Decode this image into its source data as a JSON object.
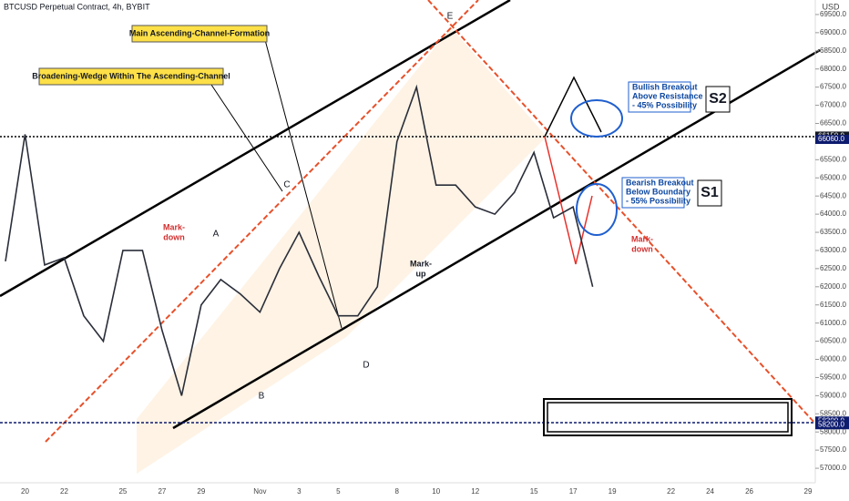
{
  "header": "BTCUSD Perpetual Contract, 4h, BYBIT",
  "currency": "USD",
  "chart_data": {
    "type": "line",
    "categories": [
      null,
      "20",
      null,
      "22",
      null,
      null,
      "25",
      null,
      "27",
      null,
      "29",
      null,
      null,
      "Nov",
      null,
      "3",
      null,
      "5",
      null,
      null,
      "8",
      null,
      "10",
      null,
      "12",
      null,
      null,
      "15",
      null,
      "17",
      null,
      "19",
      null,
      null,
      "22",
      null,
      "24",
      null,
      "26",
      null,
      null,
      "29"
    ],
    "series": [
      {
        "color": "#2a2e39",
        "values": [
          62700,
          66200,
          62600,
          62800,
          61200,
          60500,
          63000,
          63000,
          60800,
          59000,
          61500,
          62200,
          61800,
          61300,
          62500,
          63500,
          62300,
          61200,
          61200,
          62000,
          66000,
          67500,
          64800,
          64800,
          64200,
          64000,
          64600,
          65700,
          63900,
          64200,
          62000,
          null,
          null,
          null,
          null,
          null,
          null,
          null,
          null,
          null,
          null,
          null
        ]
      }
    ],
    "ylim": [
      56600,
      69900
    ],
    "yticks": [
      {
        "value": 57000,
        "label": "57000.0"
      },
      {
        "value": 57500,
        "label": "57500.0"
      },
      {
        "value": 58000,
        "label": "58000.0"
      },
      {
        "value": 58500,
        "label": "58500.0"
      },
      {
        "value": 59000,
        "label": "59000.0"
      },
      {
        "value": 59500,
        "label": "59500.0"
      },
      {
        "value": 60000,
        "label": "60000.0"
      },
      {
        "value": 60500,
        "label": "60500.0"
      },
      {
        "value": 61000,
        "label": "61000.0"
      },
      {
        "value": 61500,
        "label": "61500.0"
      },
      {
        "value": 62000,
        "label": "62000.0"
      },
      {
        "value": 62500,
        "label": "62500.0"
      },
      {
        "value": 63000,
        "label": "63000.0"
      },
      {
        "value": 63500,
        "label": "63500.0"
      },
      {
        "value": 64000,
        "label": "64000.0"
      },
      {
        "value": 64500,
        "label": "64500.0"
      },
      {
        "value": 65000,
        "label": "65000.0"
      },
      {
        "value": 65500,
        "label": "65500.0"
      },
      {
        "value": 66500,
        "label": "66500.0"
      },
      {
        "value": 67000,
        "label": "67000.0"
      },
      {
        "value": 67500,
        "label": "67500.0"
      },
      {
        "value": 68000,
        "label": "68000.0"
      },
      {
        "value": 68500,
        "label": "68500.0"
      },
      {
        "value": 69000,
        "label": "69000.0"
      },
      {
        "value": 69500,
        "label": "69500.0"
      }
    ],
    "price_markers": [
      {
        "value": 66150,
        "label": "66150.0",
        "color": "#131722"
      },
      {
        "value": 66060,
        "label": "66060.0",
        "color": "#0d1b6e"
      },
      {
        "value": 58300,
        "label": "58300.0",
        "color": "#0d1b6e"
      },
      {
        "value": 58200,
        "label": "58200.0",
        "color": "#0d1b6e"
      }
    ]
  },
  "annotations": {
    "main_channel": "Main Ascending-Channel-Formation",
    "wedge": "Broadening-Wedge Within The Ascending-Channel",
    "markdown_1": [
      "Mark-",
      "down"
    ],
    "markup": [
      "Mark-",
      "up"
    ],
    "markdown_2": [
      "Mark-",
      "down"
    ],
    "points": [
      "A",
      "B",
      "C",
      "D",
      "E"
    ],
    "bullish": [
      "Bullish Breakout",
      "Above Resistance",
      "- 45% Possibility"
    ],
    "bearish": [
      "Bearish Breakout",
      "Below Boundary",
      "- 55% Possibility"
    ],
    "s1": "S1",
    "s2": "S2"
  }
}
